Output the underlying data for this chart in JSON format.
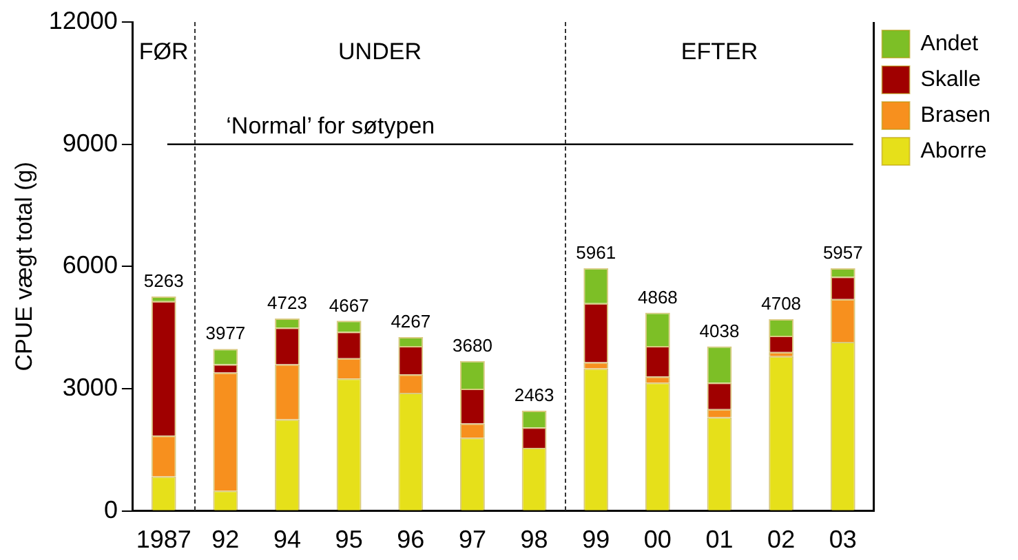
{
  "chart_data": {
    "type": "bar",
    "stacked": true,
    "ylabel": "CPUE vægt total (g)",
    "categories": [
      "1987",
      "92",
      "94",
      "95",
      "96",
      "97",
      "98",
      "99",
      "00",
      "01",
      "02",
      "03"
    ],
    "series": [
      {
        "name": "Aborre",
        "color": "#e6e01a",
        "values": [
          850,
          500,
          2250,
          3250,
          2900,
          1800,
          1550,
          3500,
          3150,
          2300,
          3800,
          4150
        ]
      },
      {
        "name": "Brasen",
        "color": "#f7901e",
        "values": [
          1000,
          2900,
          1350,
          500,
          450,
          350,
          0,
          150,
          150,
          200,
          100,
          1050
        ]
      },
      {
        "name": "Skalle",
        "color": "#a00000",
        "values": [
          3300,
          200,
          900,
          650,
          700,
          850,
          500,
          1450,
          750,
          650,
          400,
          550
        ]
      },
      {
        "name": "Andet",
        "color": "#7dbf26",
        "values": [
          113,
          377,
          223,
          267,
          217,
          680,
          413,
          861,
          818,
          888,
          408,
          207
        ]
      }
    ],
    "totals": [
      "5263",
      "3977",
      "4723",
      "4667",
      "4267",
      "3680",
      "2463",
      "5961",
      "4868",
      "4038",
      "4708",
      "5957"
    ],
    "ylim": [
      0,
      12000
    ],
    "yticks": [
      0,
      3000,
      6000,
      9000,
      12000
    ],
    "grid": false,
    "legend": "top right",
    "ref_lines": [
      {
        "axis": "y",
        "value": 9000,
        "label": "‘Normal’ for søtypen",
        "color": "#000000"
      }
    ],
    "annotations": [
      "FØR",
      "UNDER",
      "EFTER"
    ]
  }
}
